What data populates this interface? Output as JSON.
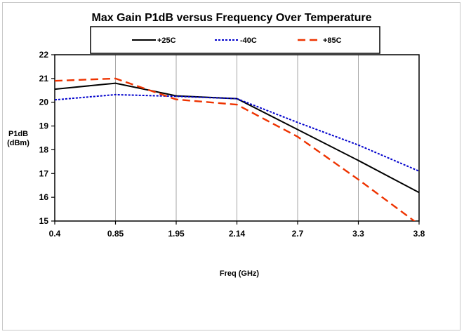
{
  "chart_data": {
    "type": "line",
    "title": "Max Gain P1dB versus Frequency Over Temperature",
    "xlabel": "Freq (GHz)",
    "ylabel_line1": "P1dB",
    "ylabel_line2": "(dBm)",
    "categories": [
      "0.4",
      "0.85",
      "1.95",
      "2.14",
      "2.7",
      "3.3",
      "3.8"
    ],
    "ylim": [
      15,
      22
    ],
    "yticks": [
      "15",
      "16",
      "17",
      "18",
      "19",
      "20",
      "21",
      "22"
    ],
    "grid": "vertical",
    "legend_position": "top",
    "series": [
      {
        "name": "+25C",
        "color": "#000000",
        "dash": "solid",
        "values": [
          20.55,
          20.8,
          20.27,
          20.15,
          18.85,
          17.55,
          16.2
        ]
      },
      {
        "name": "-40C",
        "color": "#0000cc",
        "dash": "dotted",
        "values": [
          20.1,
          20.32,
          20.25,
          20.15,
          19.15,
          18.2,
          17.1
        ]
      },
      {
        "name": "+85C",
        "color": "#ee3300",
        "dash": "dashed",
        "values": [
          20.9,
          21.0,
          20.12,
          19.9,
          18.55,
          16.75,
          14.85
        ]
      }
    ]
  }
}
